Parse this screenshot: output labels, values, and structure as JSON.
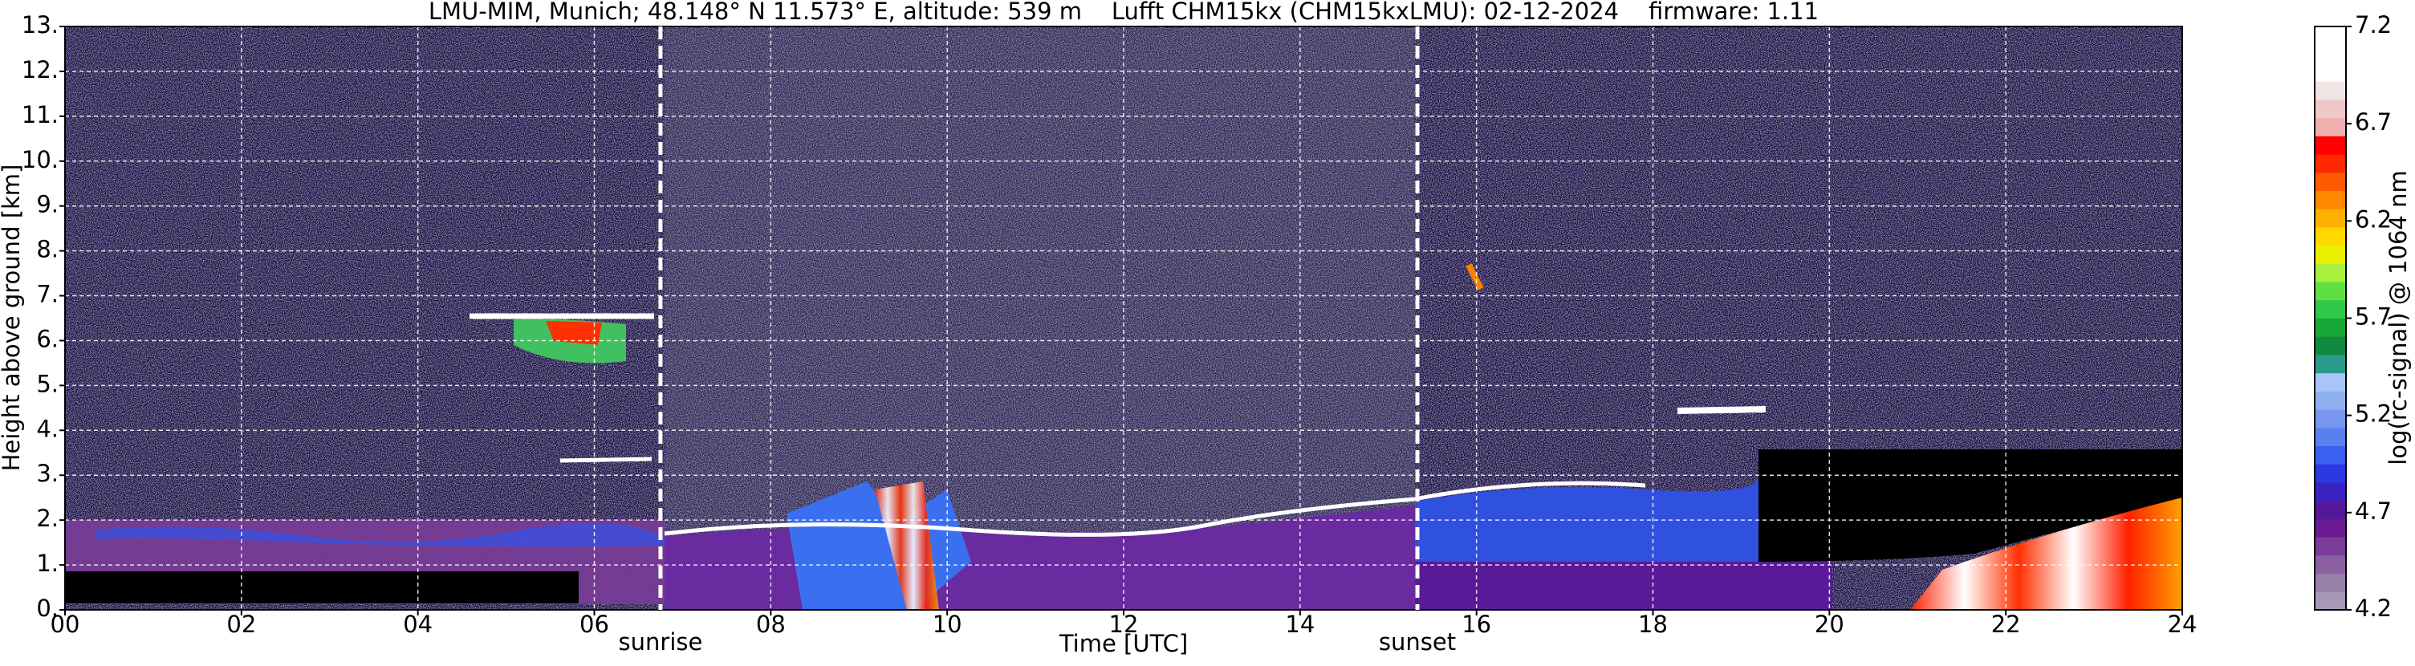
{
  "chart_data": {
    "type": "heatmap",
    "title": "LMU-MIM, Munich; 48.148° N 11.573° E, altitude: 539 m    Lufft CHM15kx (CHM15kxLMU): 02-12-2024    firmware: 1.11",
    "xlabel": "Time [UTC]",
    "ylabel": "Height above ground [km]",
    "xlim": [
      0,
      24
    ],
    "xticks": [
      {
        "value": 0,
        "label": "00"
      },
      {
        "value": 2,
        "label": "02"
      },
      {
        "value": 4,
        "label": "04"
      },
      {
        "value": 6,
        "label": "06"
      },
      {
        "value": 8,
        "label": "08"
      },
      10,
      12,
      14,
      16,
      18,
      20,
      22,
      24
    ],
    "ylim": [
      0,
      13
    ],
    "yticks": [
      {
        "value": 0,
        "label": "0."
      },
      {
        "value": 1,
        "label": "1."
      },
      {
        "value": 2,
        "label": "2."
      },
      {
        "value": 3,
        "label": "3."
      },
      {
        "value": 4,
        "label": "4."
      },
      {
        "value": 5,
        "label": "5."
      },
      {
        "value": 6,
        "label": "6."
      },
      {
        "value": 7,
        "label": "7."
      },
      {
        "value": 8,
        "label": "8."
      },
      {
        "value": 9,
        "label": "9."
      },
      {
        "value": 10,
        "label": "10."
      },
      {
        "value": 11,
        "label": "11."
      },
      {
        "value": 12,
        "label": "12."
      },
      {
        "value": 13,
        "label": "13."
      }
    ],
    "grid": true,
    "markers": [
      {
        "x": 6.75,
        "label": "sunrise"
      },
      {
        "x": 15.33,
        "label": "sunset"
      }
    ],
    "colorbar": {
      "label": "log(rc-signal) @ 1064 nm",
      "lim": [
        4.2,
        7.2
      ],
      "ticks": [
        4.2,
        4.7,
        5.2,
        5.7,
        6.2,
        6.7,
        7.2
      ],
      "colors": [
        "#a898b8",
        "#9880a8",
        "#8a60a0",
        "#7a3c98",
        "#6a1a90",
        "#55189a",
        "#3a22c0",
        "#2a3ae0",
        "#3a60f0",
        "#5a80f0",
        "#7898f0",
        "#90b0f4",
        "#a8c4f8",
        "#2a9a8a",
        "#108a40",
        "#18a838",
        "#30c848",
        "#60e040",
        "#a8f040",
        "#e8f000",
        "#ffd800",
        "#ffb000",
        "#ff8800",
        "#ff5a00",
        "#ff2800",
        "#ff0000",
        "#f0b0b0",
        "#f0c8c8",
        "#f0e4e4",
        "#ffffff",
        "#ffffff",
        "#ffffff"
      ]
    }
  }
}
